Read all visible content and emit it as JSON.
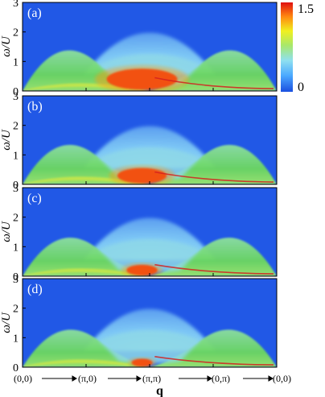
{
  "chart_data": {
    "type": "heatmap",
    "xlabel": "q",
    "ylabel": "ω/U",
    "x_ticks": [
      "(0,0)",
      "(π,0)",
      "(π,π)",
      "(0,π)",
      "(0,0)"
    ],
    "y_ticks": [
      "0",
      "1",
      "2",
      "3"
    ],
    "ylim": [
      0,
      3
    ],
    "colorbar": {
      "min_label": "0",
      "max_label": "1.5",
      "range": [
        0,
        1.5
      ],
      "colors": [
        "#1a4fe0",
        "#4aa8ff",
        "#8fe0f0",
        "#a8e86a",
        "#f0f020",
        "#ff8a10",
        "#e01010"
      ]
    },
    "panels": [
      {
        "label": "(a)"
      },
      {
        "label": "(b)"
      },
      {
        "label": "(c)"
      },
      {
        "label": "(d)"
      }
    ]
  }
}
